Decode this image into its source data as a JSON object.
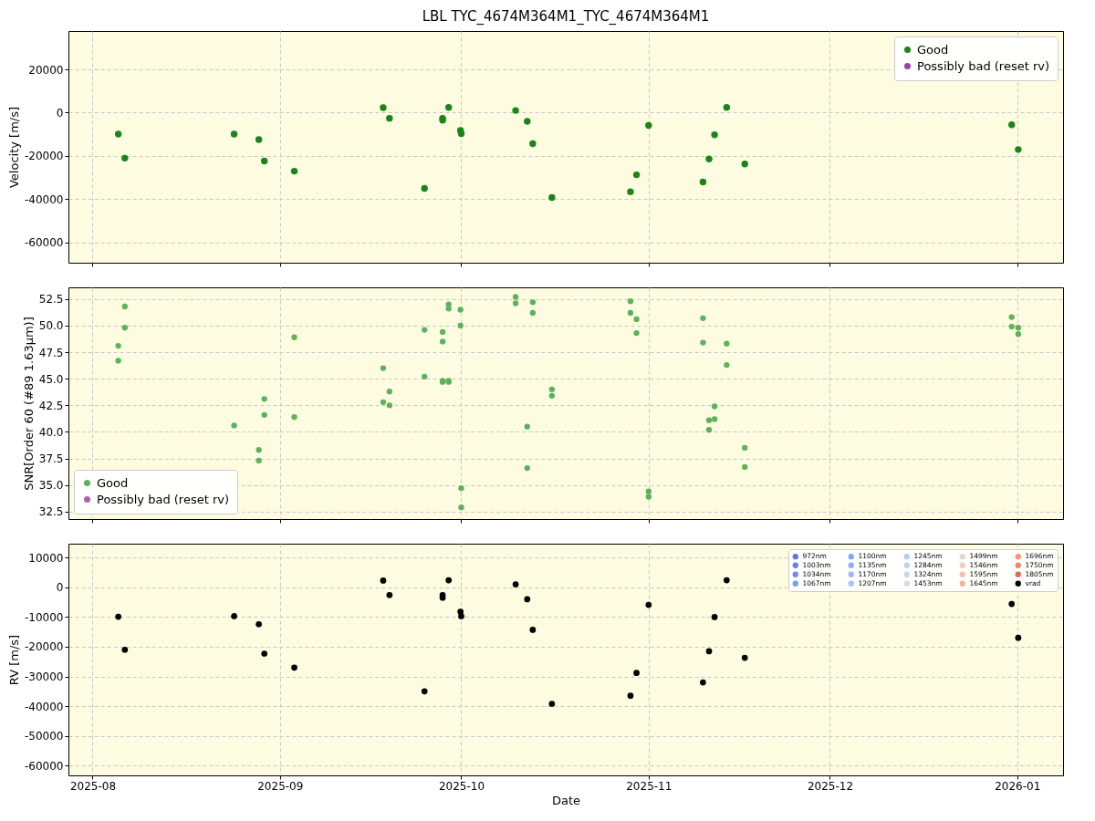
{
  "chart_data": [
    {
      "type": "scatter",
      "title": "LBL TYC_4674M364M1_TYC_4674M364M1",
      "ylabel": "Velocity [m/s]",
      "grid": true,
      "legend": "top right",
      "marker": "circle",
      "tick_labels": "y",
      "x": [
        "2025-08-05T06:00",
        "2025-08-06T08:00",
        "2025-08-24T10:00",
        "2025-08-28T12:00",
        "2025-08-29T10:00",
        "2025-09-03T09:00",
        "2025-09-18T02:00",
        "2025-09-19T03:00",
        "2025-09-24T22:00",
        "2025-09-27T22:00",
        "2025-09-27T22:00",
        "2025-09-28T22:00",
        "2025-09-30T21:00",
        "2025-10-01",
        "2025-10-10",
        "2025-10-11T22:00",
        "2025-10-12T20:00",
        "2025-10-16",
        "2025-10-29",
        "2025-10-30",
        "2025-11-01",
        "2025-11-10",
        "2025-11-11",
        "2025-11-11T22:00",
        "2025-11-13T22:00",
        "2025-11-16T22:00",
        "2025-12-31T02:00",
        "2026-01-01T04:00"
      ],
      "xlim": [
        "2025-07-28",
        "2026-01-08T14:00"
      ],
      "xticks": [
        {
          "value": "2025-08-01",
          "label": null
        },
        {
          "value": "2025-09-01",
          "label": null
        },
        {
          "value": "2025-10-01",
          "label": null
        },
        {
          "value": "2025-11-01",
          "label": null
        },
        {
          "value": "2025-12-01",
          "label": null
        },
        {
          "value": "2026-01-01",
          "label": null
        }
      ],
      "ylim": [
        -69300,
        37700
      ],
      "yticks": [
        -60000,
        -40000,
        -20000,
        0,
        20000
      ],
      "series": [
        {
          "name": "Good",
          "color": "#1a861a",
          "values": [
            -9900,
            -21000,
            -9900,
            -12400,
            -22300,
            -27000,
            2300,
            -2600,
            -35000,
            -3500,
            -2600,
            2400,
            -8200,
            -9700,
            1000,
            -4000,
            -14300,
            -39200,
            -36500,
            -28700,
            -5900,
            -32000,
            -21400,
            -10200,
            2400,
            -23700,
            -5600,
            -17000
          ]
        },
        {
          "name": "Possibly bad (reset rv)",
          "color": "#a040a0",
          "values": [
            null,
            null,
            null,
            null,
            null,
            null,
            null,
            null,
            null,
            null,
            null,
            null,
            null,
            null,
            null,
            null,
            null,
            null,
            null,
            null,
            null,
            null,
            null,
            null,
            null,
            null,
            null,
            null
          ]
        }
      ]
    },
    {
      "type": "scatter",
      "ylabel": "SNR[Order 60 (#89 1.63μm)]",
      "grid": true,
      "legend": "bottom left",
      "marker": "circle",
      "tick_labels": "y",
      "xlim": [
        "2025-07-28",
        "2026-01-08T14:00"
      ],
      "xticks": [
        {
          "value": "2025-08-01",
          "label": null
        },
        {
          "value": "2025-09-01",
          "label": null
        },
        {
          "value": "2025-10-01",
          "label": null
        },
        {
          "value": "2025-11-01",
          "label": null
        },
        {
          "value": "2025-12-01",
          "label": null
        },
        {
          "value": "2026-01-01",
          "label": null
        }
      ],
      "ylim": [
        31.8,
        53.6
      ],
      "yticks": [
        32.5,
        {
          "value": 35,
          "label": "35.0"
        },
        37.5,
        {
          "value": 40,
          "label": "40.0"
        },
        42.5,
        {
          "value": 45,
          "label": "45.0"
        },
        47.5,
        {
          "value": 50,
          "label": "50.0"
        },
        52.5
      ],
      "series": [
        {
          "name": "Good",
          "color": "#5cb35c",
          "x": [
            "2025-08-05T06:00",
            "2025-08-05T06:00",
            "2025-08-06T08:00",
            "2025-08-06T08:00",
            "2025-08-24T10:00",
            "2025-08-28T12:00",
            "2025-08-28T12:00",
            "2025-08-29T10:00",
            "2025-08-29T10:00",
            "2025-09-03T09:00",
            "2025-09-03T09:00",
            "2025-09-18T02:00",
            "2025-09-18T02:00",
            "2025-09-19T03:00",
            "2025-09-19T03:00",
            "2025-09-24T22:00",
            "2025-09-24T22:00",
            "2025-09-27T22:00",
            "2025-09-27T22:00",
            "2025-09-27T22:00",
            "2025-09-27T22:00",
            "2025-09-28T22:00",
            "2025-09-28T22:00",
            "2025-09-28T22:00",
            "2025-09-28T22:00",
            "2025-09-30T21:00",
            "2025-09-30T21:00",
            "2025-10-01",
            "2025-10-01",
            "2025-10-10",
            "2025-10-10",
            "2025-10-11T22:00",
            "2025-10-11T22:00",
            "2025-10-12T20:00",
            "2025-10-12T20:00",
            "2025-10-16",
            "2025-10-16",
            "2025-10-29",
            "2025-10-29",
            "2025-10-30",
            "2025-10-30",
            "2025-11-01",
            "2025-11-01",
            "2025-11-10",
            "2025-11-10",
            "2025-11-11",
            "2025-11-11",
            "2025-11-11T22:00",
            "2025-11-11T22:00",
            "2025-11-13T22:00",
            "2025-11-13T22:00",
            "2025-11-16T22:00",
            "2025-11-16T22:00",
            "2025-12-31T02:00",
            "2025-12-31T02:00",
            "2026-01-01T04:00",
            "2026-01-01T04:00"
          ],
          "values": [
            48.1,
            46.7,
            51.8,
            49.8,
            40.6,
            38.3,
            37.3,
            43.1,
            41.6,
            48.9,
            41.4,
            46.0,
            42.8,
            43.8,
            42.5,
            49.6,
            45.2,
            48.5,
            49.4,
            44.8,
            44.7,
            52.0,
            51.6,
            44.8,
            44.7,
            51.5,
            50.0,
            34.7,
            32.9,
            52.7,
            52.1,
            40.5,
            36.6,
            52.2,
            51.2,
            44.0,
            43.4,
            52.3,
            51.2,
            50.6,
            49.3,
            34.4,
            33.9,
            50.7,
            48.4,
            41.1,
            40.2,
            42.4,
            41.2,
            48.3,
            46.3,
            38.5,
            36.7,
            50.8,
            49.9,
            49.8,
            49.2
          ]
        },
        {
          "name": "Possibly bad (reset rv)",
          "color": "#b060b0"
        }
      ]
    },
    {
      "type": "scatter",
      "xlabel": "Date",
      "ylabel": "RV [m/s]",
      "grid": true,
      "legend": "top right",
      "marker": "circle",
      "x": [
        "2025-08-05T06:00",
        "2025-08-06T08:00",
        "2025-08-24T10:00",
        "2025-08-28T12:00",
        "2025-08-29T10:00",
        "2025-09-03T09:00",
        "2025-09-18T02:00",
        "2025-09-19T03:00",
        "2025-09-24T22:00",
        "2025-09-27T22:00",
        "2025-09-27T22:00",
        "2025-09-28T22:00",
        "2025-09-30T21:00",
        "2025-10-01",
        "2025-10-10",
        "2025-10-11T22:00",
        "2025-10-12T20:00",
        "2025-10-16",
        "2025-10-29",
        "2025-10-30",
        "2025-11-01",
        "2025-11-10",
        "2025-11-11",
        "2025-11-11T22:00",
        "2025-11-13T22:00",
        "2025-11-16T22:00",
        "2025-12-31T02:00",
        "2026-01-01T04:00"
      ],
      "xlim": [
        "2025-07-28",
        "2026-01-08T14:00"
      ],
      "xticks": [
        {
          "value": "2025-08-01",
          "label": "2025-08"
        },
        {
          "value": "2025-09-01",
          "label": "2025-09"
        },
        {
          "value": "2025-10-01",
          "label": "2025-10"
        },
        {
          "value": "2025-11-01",
          "label": "2025-11"
        },
        {
          "value": "2025-12-01",
          "label": "2025-12"
        },
        {
          "value": "2026-01-01",
          "label": "2026-01"
        }
      ],
      "ylim": [
        -63300,
        14700
      ],
      "yticks": [
        -60000,
        -50000,
        -40000,
        -30000,
        -20000,
        -10000,
        0,
        10000
      ],
      "series": [
        {
          "name": "972nm",
          "color": "#5a78e4",
          "values": [
            null,
            null,
            null,
            null,
            null,
            null,
            null,
            null,
            null,
            null,
            null,
            null,
            null,
            null,
            null,
            null,
            null,
            null,
            null,
            null,
            null,
            null,
            null,
            null,
            null,
            null,
            null,
            null
          ]
        },
        {
          "name": "1003nm",
          "color": "#6282ea",
          "values": [
            null,
            null,
            null,
            null,
            null,
            null,
            null,
            null,
            null,
            null,
            null,
            null,
            null,
            null,
            null,
            null,
            null,
            null,
            null,
            null,
            null,
            null,
            null,
            null,
            null,
            null,
            null,
            null
          ]
        },
        {
          "name": "1034nm",
          "color": "#6b8df0",
          "values": [
            null,
            null,
            null,
            null,
            null,
            null,
            null,
            null,
            null,
            null,
            null,
            null,
            null,
            null,
            null,
            null,
            null,
            null,
            null,
            null,
            null,
            null,
            null,
            null,
            null,
            null,
            null,
            null
          ]
        },
        {
          "name": "1067nm",
          "color": "#779af7",
          "values": [
            null,
            null,
            null,
            null,
            null,
            null,
            null,
            null,
            null,
            null,
            null,
            null,
            null,
            null,
            null,
            null,
            null,
            null,
            null,
            null,
            null,
            null,
            null,
            null,
            null,
            null,
            null,
            null
          ]
        },
        {
          "name": "1100nm",
          "color": "#82a6fb",
          "values": [
            null,
            null,
            null,
            null,
            null,
            null,
            null,
            null,
            null,
            null,
            null,
            null,
            null,
            null,
            null,
            null,
            null,
            null,
            null,
            null,
            null,
            null,
            null,
            null,
            null,
            null,
            null,
            null
          ]
        },
        {
          "name": "1135nm",
          "color": "#8db0fe",
          "values": [
            null,
            null,
            null,
            null,
            null,
            null,
            null,
            null,
            null,
            null,
            null,
            null,
            null,
            null,
            null,
            null,
            null,
            null,
            null,
            null,
            null,
            null,
            null,
            null,
            null,
            null,
            null,
            null
          ]
        },
        {
          "name": "1170nm",
          "color": "#9abbff",
          "values": [
            null,
            null,
            null,
            null,
            null,
            null,
            null,
            null,
            null,
            null,
            null,
            null,
            null,
            null,
            null,
            null,
            null,
            null,
            null,
            null,
            null,
            null,
            null,
            null,
            null,
            null,
            null,
            null
          ]
        },
        {
          "name": "1207nm",
          "color": "#a5c3fe",
          "values": [
            null,
            null,
            null,
            null,
            null,
            null,
            null,
            null,
            null,
            null,
            null,
            null,
            null,
            null,
            null,
            null,
            null,
            null,
            null,
            null,
            null,
            null,
            null,
            null,
            null,
            null,
            null,
            null
          ]
        },
        {
          "name": "1245nm",
          "color": "#b2ccfb",
          "values": [
            null,
            null,
            null,
            null,
            null,
            null,
            null,
            null,
            null,
            null,
            null,
            null,
            null,
            null,
            null,
            null,
            null,
            null,
            null,
            null,
            null,
            null,
            null,
            null,
            null,
            null,
            null,
            null
          ]
        },
        {
          "name": "1284nm",
          "color": "#bcd2f7",
          "values": [
            null,
            null,
            null,
            null,
            null,
            null,
            null,
            null,
            null,
            null,
            null,
            null,
            null,
            null,
            null,
            null,
            null,
            null,
            null,
            null,
            null,
            null,
            null,
            null,
            null,
            null,
            null,
            null
          ]
        },
        {
          "name": "1324nm",
          "color": "#c7d7f0",
          "values": [
            null,
            null,
            null,
            null,
            null,
            null,
            null,
            null,
            null,
            null,
            null,
            null,
            null,
            null,
            null,
            null,
            null,
            null,
            null,
            null,
            null,
            null,
            null,
            null,
            null,
            null,
            null,
            null
          ]
        },
        {
          "name": "1453nm",
          "color": "#dddcdc",
          "values": [
            null,
            null,
            null,
            null,
            null,
            null,
            null,
            null,
            null,
            null,
            null,
            null,
            null,
            null,
            null,
            null,
            null,
            null,
            null,
            null,
            null,
            null,
            null,
            null,
            null,
            null,
            null,
            null
          ]
        },
        {
          "name": "1499nm",
          "color": "#e8d6cc",
          "values": [
            null,
            null,
            null,
            null,
            null,
            null,
            null,
            null,
            null,
            null,
            null,
            null,
            null,
            null,
            null,
            null,
            null,
            null,
            null,
            null,
            null,
            null,
            null,
            null,
            null,
            null,
            null,
            null
          ]
        },
        {
          "name": "1546nm",
          "color": "#f1cdba",
          "values": [
            null,
            null,
            null,
            null,
            null,
            null,
            null,
            null,
            null,
            null,
            null,
            null,
            null,
            null,
            null,
            null,
            null,
            null,
            null,
            null,
            null,
            null,
            null,
            null,
            null,
            null,
            null,
            null
          ]
        },
        {
          "name": "1595nm",
          "color": "#f5c1a9",
          "values": [
            null,
            null,
            null,
            null,
            null,
            null,
            null,
            null,
            null,
            null,
            null,
            null,
            null,
            null,
            null,
            null,
            null,
            null,
            null,
            null,
            null,
            null,
            null,
            null,
            null,
            null,
            null,
            null
          ]
        },
        {
          "name": "1645nm",
          "color": "#f7b497",
          "values": [
            null,
            null,
            null,
            null,
            null,
            null,
            null,
            null,
            null,
            null,
            null,
            null,
            null,
            null,
            null,
            null,
            null,
            null,
            null,
            null,
            null,
            null,
            null,
            null,
            null,
            null,
            null,
            null
          ]
        },
        {
          "name": "1696nm",
          "color": "#f4987a",
          "values": [
            null,
            null,
            null,
            null,
            null,
            null,
            null,
            null,
            null,
            null,
            null,
            null,
            null,
            null,
            null,
            null,
            null,
            null,
            null,
            null,
            null,
            null,
            null,
            null,
            null,
            null,
            null,
            null
          ]
        },
        {
          "name": "1750nm",
          "color": "#ee8468",
          "values": [
            null,
            null,
            null,
            null,
            null,
            null,
            null,
            null,
            null,
            null,
            null,
            null,
            null,
            null,
            null,
            null,
            null,
            null,
            null,
            null,
            null,
            null,
            null,
            null,
            null,
            null,
            null,
            null
          ]
        },
        {
          "name": "1805nm",
          "color": "#e26952",
          "values": [
            null,
            null,
            null,
            null,
            null,
            null,
            null,
            null,
            null,
            null,
            null,
            null,
            null,
            null,
            null,
            null,
            null,
            null,
            null,
            null,
            null,
            null,
            null,
            null,
            null,
            null,
            null,
            null
          ]
        },
        {
          "name": "vrad",
          "color": "#000000",
          "values": [
            -9900,
            -21000,
            -9700,
            -12400,
            -22300,
            -27000,
            2300,
            -2600,
            -35000,
            -3500,
            -2600,
            2400,
            -8200,
            -9700,
            1000,
            -4000,
            -14300,
            -39200,
            -36500,
            -28800,
            -5900,
            -32000,
            -21500,
            -10000,
            2400,
            -23700,
            -5600,
            -17000
          ]
        }
      ]
    }
  ]
}
